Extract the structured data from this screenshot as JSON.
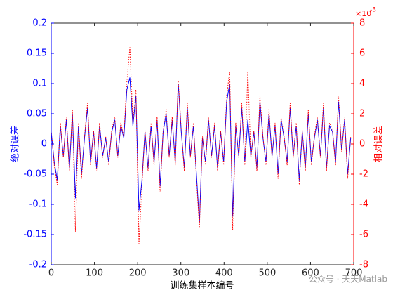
{
  "chart_data": {
    "type": "line",
    "xlabel": "训练集样本编号",
    "ylabel": "绝对误差",
    "y2label": "相对误差",
    "y2_exponent": {
      "base": "×10",
      "power": "-3"
    },
    "watermark": "公众号 · 天天Matlab",
    "x": [
      0,
      7,
      14,
      21,
      28,
      35,
      42,
      49,
      56,
      63,
      70,
      77,
      84,
      91,
      98,
      105,
      112,
      119,
      126,
      133,
      140,
      147,
      154,
      161,
      168,
      175,
      182,
      189,
      196,
      203,
      210,
      217,
      224,
      231,
      238,
      245,
      252,
      259,
      266,
      273,
      280,
      287,
      294,
      301,
      308,
      315,
      322,
      329,
      336,
      343,
      350,
      357,
      364,
      371,
      378,
      385,
      392,
      399,
      406,
      413,
      420,
      427,
      434,
      441,
      448,
      455,
      462,
      469,
      476,
      483,
      490,
      497,
      504,
      511,
      518,
      525,
      532,
      539,
      546,
      553,
      560,
      567,
      574,
      581,
      588,
      595,
      602,
      609,
      616,
      623,
      630,
      637,
      644,
      651,
      658,
      665,
      672,
      679,
      686,
      693
    ],
    "series": [
      {
        "color": "#0000ff",
        "style": "solid",
        "axis": "y",
        "values": [
          0.02,
          -0.03,
          -0.06,
          0.03,
          -0.02,
          0.04,
          -0.04,
          0.05,
          -0.09,
          0.03,
          -0.05,
          0.01,
          0.06,
          -0.03,
          0.02,
          -0.04,
          0.03,
          -0.02,
          0.01,
          -0.03,
          0.02,
          0.04,
          -0.02,
          0.03,
          0.01,
          0.09,
          0.11,
          0.03,
          0.08,
          -0.11,
          -0.06,
          0.02,
          -0.04,
          0.03,
          -0.03,
          0.04,
          -0.07,
          0.02,
          0.05,
          -0.02,
          0.04,
          -0.03,
          0.1,
          0.02,
          -0.04,
          0.06,
          -0.02,
          0.03,
          -0.05,
          -0.13,
          0.01,
          -0.03,
          0.04,
          -0.02,
          0.03,
          -0.04,
          0.02,
          -0.03,
          0.07,
          0.1,
          -0.12,
          0.03,
          -0.02,
          0.06,
          -0.03,
          0.04,
          -0.02,
          0.02,
          -0.04,
          0.07,
          0.01,
          -0.03,
          0.05,
          -0.02,
          0.03,
          -0.05,
          0.04,
          0.01,
          -0.03,
          0.06,
          -0.02,
          0.03,
          -0.06,
          0.02,
          -0.04,
          0.05,
          -0.03,
          0.01,
          0.04,
          -0.02,
          0.06,
          -0.04,
          0.03,
          0.02,
          -0.03,
          0.07,
          -0.01,
          0.04,
          -0.05,
          0.01
        ]
      },
      {
        "color": "#ff0000",
        "style": "dotted",
        "axis": "y2",
        "values": [
          0.0009,
          -0.0014,
          -0.0027,
          0.0014,
          -0.0009,
          0.0018,
          -0.0018,
          0.0023,
          -0.0058,
          0.0014,
          -0.0023,
          0.0005,
          0.0027,
          -0.0014,
          0.0009,
          -0.0018,
          0.0014,
          -0.0009,
          0.0005,
          -0.0014,
          0.0009,
          0.0018,
          -0.0009,
          0.0014,
          0.0005,
          0.0041,
          0.0064,
          0.0014,
          0.0036,
          -0.0066,
          -0.0027,
          0.0009,
          -0.0018,
          0.0014,
          -0.0014,
          0.0018,
          -0.0032,
          0.0009,
          0.0023,
          -0.0009,
          0.0018,
          -0.0014,
          0.0042,
          0.0009,
          -0.0018,
          0.0027,
          -0.0009,
          0.0014,
          -0.0023,
          -0.0055,
          0.0005,
          -0.0014,
          0.0018,
          -0.0009,
          0.0014,
          -0.0018,
          0.0009,
          -0.0014,
          0.0032,
          0.0048,
          -0.0057,
          0.0014,
          -0.0009,
          0.0027,
          -0.0014,
          0.0048,
          -0.0009,
          0.0009,
          -0.0018,
          0.0032,
          0.0005,
          -0.0014,
          0.0023,
          -0.0009,
          0.0014,
          -0.0023,
          0.0018,
          0.0005,
          -0.0014,
          0.0027,
          -0.0009,
          0.0014,
          -0.0027,
          0.0009,
          -0.0018,
          0.0023,
          -0.0014,
          0.0005,
          0.0018,
          -0.0009,
          0.0027,
          -0.0018,
          0.0014,
          0.0009,
          -0.0014,
          0.0032,
          -0.0005,
          0.0018,
          -0.0023,
          0.0005
        ]
      }
    ],
    "xlim": [
      0,
      700
    ],
    "xticks": [
      0,
      100,
      200,
      300,
      400,
      500,
      600,
      700
    ],
    "ylim": [
      -0.2,
      0.2
    ],
    "yticks": [
      -0.2,
      -0.15,
      -0.1,
      -0.05,
      0,
      0.05,
      0.1,
      0.15,
      0.2
    ],
    "y2lim": [
      -0.008,
      0.008
    ],
    "y2ticks": [
      {
        "value": -0.008,
        "label": "-8"
      },
      {
        "value": -0.006,
        "label": "-6"
      },
      {
        "value": -0.004,
        "label": "-4"
      },
      {
        "value": -0.002,
        "label": "-2"
      },
      {
        "value": 0,
        "label": "0"
      },
      {
        "value": 0.002,
        "label": "2"
      },
      {
        "value": 0.004,
        "label": "4"
      },
      {
        "value": 0.006,
        "label": "6"
      },
      {
        "value": 0.008,
        "label": "8"
      }
    ],
    "left_axis_color": "#0000ff",
    "right_axis_color": "#ff0000"
  }
}
